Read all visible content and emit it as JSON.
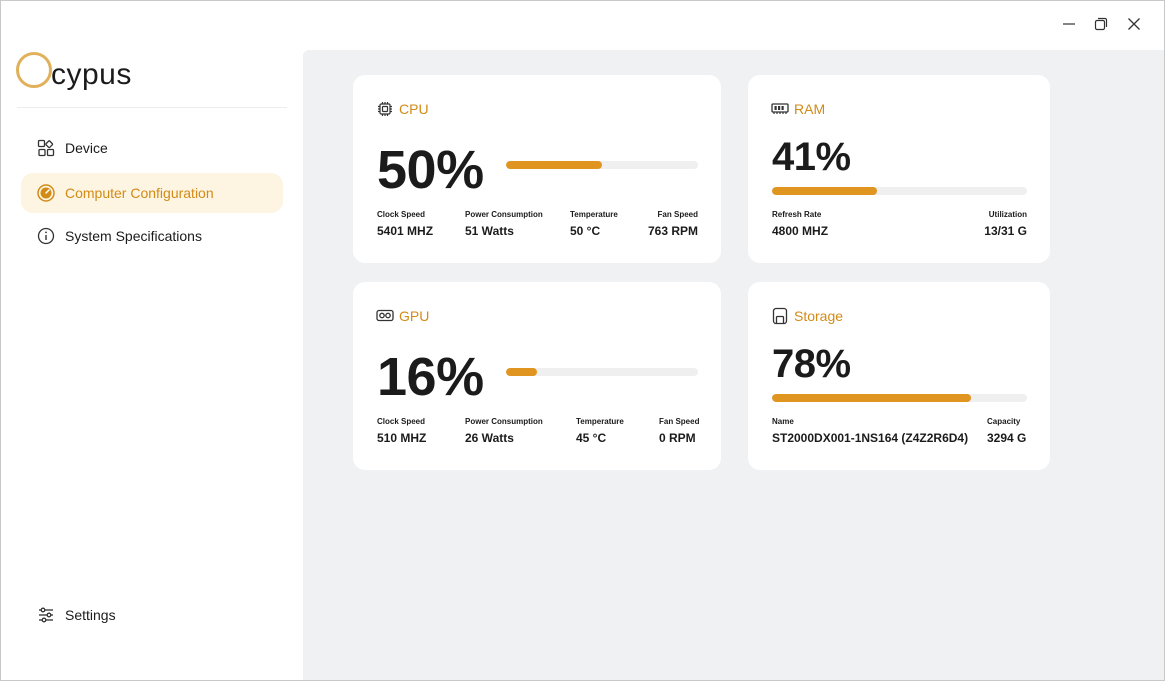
{
  "app": {
    "logo_text": "cypus",
    "accent_color": "#e09521"
  },
  "window_controls": {
    "minimize_icon": "minimize-icon",
    "maximize_icon": "restore-icon",
    "close_icon": "close-icon"
  },
  "sidebar": {
    "items": [
      {
        "label": "Device",
        "icon": "grid-icon",
        "active": false
      },
      {
        "label": "Computer Configuration",
        "icon": "gauge-icon",
        "active": true
      },
      {
        "label": "System Specifications",
        "icon": "info-icon",
        "active": false
      }
    ],
    "settings": {
      "label": "Settings",
      "icon": "sliders-icon"
    }
  },
  "cards": {
    "cpu": {
      "title": "CPU",
      "icon": "chip-icon",
      "percent_text": "50%",
      "percent": 50,
      "stats": [
        {
          "label": "Clock Speed",
          "value": "5401 MHZ"
        },
        {
          "label": "Power Consumption",
          "value": "51 Watts"
        },
        {
          "label": "Temperature",
          "value": "50 °C"
        },
        {
          "label": "Fan Speed",
          "value": "763 RPM"
        }
      ]
    },
    "ram": {
      "title": "RAM",
      "icon": "memory-icon",
      "percent_text": "41%",
      "percent": 41,
      "stats": [
        {
          "label": "Refresh Rate",
          "value": "4800 MHZ"
        },
        {
          "label": "Utilization",
          "value": "13/31 G"
        }
      ]
    },
    "gpu": {
      "title": "GPU",
      "icon": "graphics-card-icon",
      "percent_text": "16%",
      "percent": 16,
      "stats": [
        {
          "label": "Clock Speed",
          "value": "510 MHZ"
        },
        {
          "label": "Power Consumption",
          "value": "26 Watts"
        },
        {
          "label": "Temperature",
          "value": "45 °C"
        },
        {
          "label": "Fan Speed",
          "value": "0 RPM"
        }
      ]
    },
    "storage": {
      "title": "Storage",
      "icon": "drive-icon",
      "percent_text": "78%",
      "percent": 78,
      "stats": [
        {
          "label": "Name",
          "value": "ST2000DX001-1NS164 (Z4Z2R6D4)"
        },
        {
          "label": "Capacity",
          "value": "3294 G"
        }
      ]
    }
  }
}
